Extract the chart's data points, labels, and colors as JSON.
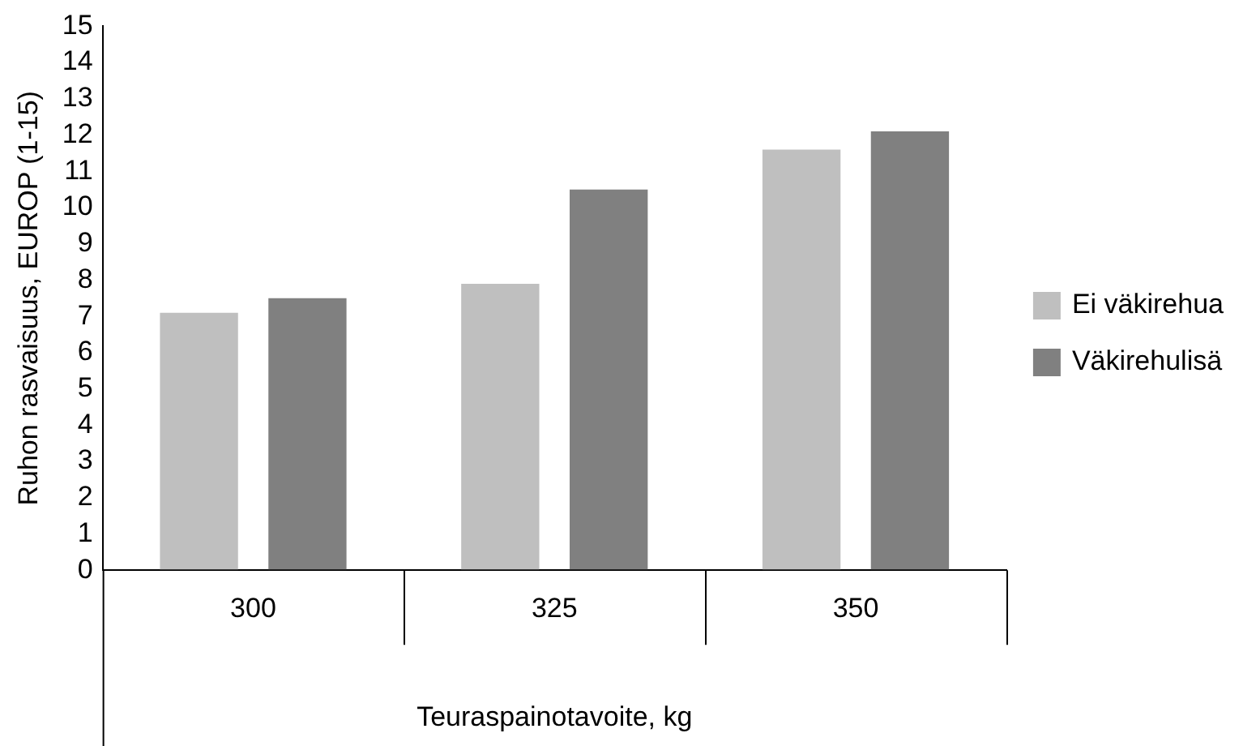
{
  "chart_data": {
    "type": "bar",
    "xlabel": "Teuraspainotavoite, kg",
    "ylabel": "Ruhon rasvaisuus, EUROP (1-15)",
    "categories": [
      "300",
      "325",
      "350"
    ],
    "series": [
      {
        "name": "Ei väkirehua",
        "color": "#bfbfbf",
        "values": [
          7.1,
          7.9,
          11.6
        ]
      },
      {
        "name": "Väkirehulisä",
        "color": "#808080",
        "values": [
          7.5,
          10.5,
          12.1
        ]
      }
    ],
    "ylim": [
      0,
      15
    ],
    "yticks": [
      0,
      1,
      2,
      3,
      4,
      5,
      6,
      7,
      8,
      9,
      10,
      11,
      12,
      13,
      14,
      15
    ],
    "grid": false,
    "legend": "right"
  }
}
